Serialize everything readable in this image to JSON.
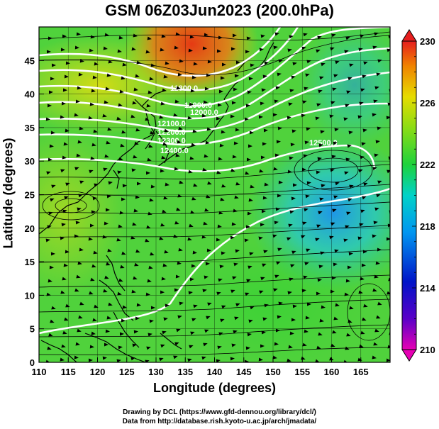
{
  "title": "GSM 06Z03Jun2023 (200.0hPa)",
  "xlabel": "Longitude (degrees)",
  "ylabel": "Latitude  (degrees)",
  "credits": [
    "Drawing by DCL (https://www.gfd-dennou.org/library/dcl/)",
    "Data from http://database.rish.kyoto-u.ac.jp/arch/jmadata/"
  ],
  "chart_data": {
    "type": "heatmap",
    "xlim": [
      110,
      170
    ],
    "ylim": [
      0,
      50
    ],
    "x_ticks": [
      "110",
      "115",
      "120",
      "125",
      "130",
      "135",
      "140",
      "145",
      "150",
      "155",
      "160",
      "165"
    ],
    "y_ticks": [
      "0",
      "5",
      "10",
      "15",
      "20",
      "25",
      "30",
      "35",
      "40",
      "45"
    ],
    "colorbar": {
      "min": 210,
      "max": 230,
      "tick_labels": [
        "210",
        "214",
        "218",
        "222",
        "226",
        "230"
      ]
    },
    "contour_labels": [
      "11800.0",
      "11900.0",
      "12000.0",
      "12100.0",
      "12200.0",
      "12300.0",
      "12400.0",
      "12500.0"
    ]
  }
}
